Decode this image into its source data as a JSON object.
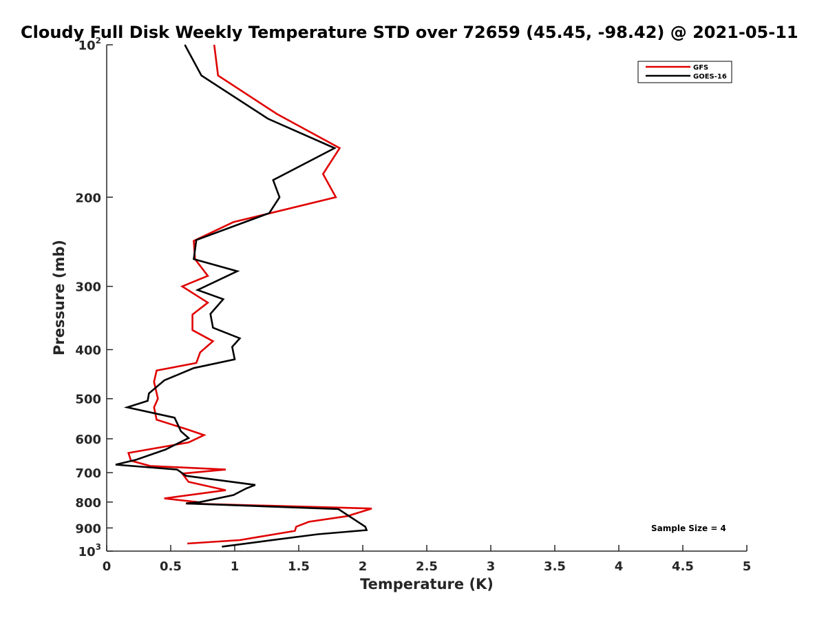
{
  "chart_data": {
    "type": "line",
    "title": "Cloudy Full Disk Weekly Temperature STD over 72659 (45.45, -98.42) @ 2021-05-11",
    "xlabel": "Temperature (K)",
    "ylabel": "Pressure (mb)",
    "xlim": [
      0,
      5
    ],
    "ylim": [
      100,
      1000
    ],
    "yscale": "log",
    "y_reversed": true,
    "grid": false,
    "legend_position": "top-right",
    "x_ticks": [
      "0",
      "0.5",
      "1",
      "1.5",
      "2",
      "2.5",
      "3",
      "3.5",
      "4",
      "4.5",
      "5"
    ],
    "y_ticks": [
      {
        "value": 100,
        "base": "10",
        "sup": "2"
      },
      {
        "value": 200,
        "base": "200",
        "sup": ""
      },
      {
        "value": 300,
        "base": "300",
        "sup": ""
      },
      {
        "value": 400,
        "base": "400",
        "sup": ""
      },
      {
        "value": 500,
        "base": "500",
        "sup": ""
      },
      {
        "value": 600,
        "base": "600",
        "sup": ""
      },
      {
        "value": 700,
        "base": "700",
        "sup": ""
      },
      {
        "value": 800,
        "base": "800",
        "sup": ""
      },
      {
        "value": 900,
        "base": "900",
        "sup": ""
      },
      {
        "value": 1000,
        "base": "10",
        "sup": "3"
      }
    ],
    "annotation": "Sample Size = 4",
    "series": [
      {
        "name": "GFS",
        "color": "#e00000",
        "points": [
          [
            0.84,
            100
          ],
          [
            0.87,
            115
          ],
          [
            1.33,
            137
          ],
          [
            1.82,
            160
          ],
          [
            1.69,
            180
          ],
          [
            1.79,
            200
          ],
          [
            0.99,
            224
          ],
          [
            0.68,
            244
          ],
          [
            0.69,
            265
          ],
          [
            0.79,
            286
          ],
          [
            0.59,
            300
          ],
          [
            0.79,
            323
          ],
          [
            0.67,
            341
          ],
          [
            0.67,
            366
          ],
          [
            0.83,
            385
          ],
          [
            0.73,
            405
          ],
          [
            0.7,
            425
          ],
          [
            0.39,
            440
          ],
          [
            0.37,
            463
          ],
          [
            0.4,
            500
          ],
          [
            0.37,
            520
          ],
          [
            0.39,
            550
          ],
          [
            0.63,
            575
          ],
          [
            0.76,
            590
          ],
          [
            0.64,
            610
          ],
          [
            0.17,
            640
          ],
          [
            0.19,
            663
          ],
          [
            0.34,
            679
          ],
          [
            0.93,
            690
          ],
          [
            0.59,
            703
          ],
          [
            0.64,
            730
          ],
          [
            0.93,
            758
          ],
          [
            0.45,
            787
          ],
          [
            0.71,
            800
          ],
          [
            0.62,
            805
          ],
          [
            2.07,
            824
          ],
          [
            1.88,
            853
          ],
          [
            1.58,
            875
          ],
          [
            1.48,
            895
          ],
          [
            1.47,
            912
          ],
          [
            1.04,
            951
          ],
          [
            0.63,
            966
          ]
        ]
      },
      {
        "name": "GOES-16",
        "color": "#000000",
        "points": [
          [
            0.61,
            100
          ],
          [
            0.74,
            115
          ],
          [
            1.26,
            140
          ],
          [
            1.78,
            160
          ],
          [
            1.3,
            185
          ],
          [
            1.35,
            200
          ],
          [
            1.27,
            215
          ],
          [
            0.7,
            243
          ],
          [
            0.68,
            265
          ],
          [
            1.02,
            280
          ],
          [
            0.71,
            305
          ],
          [
            0.91,
            318
          ],
          [
            0.81,
            340
          ],
          [
            0.83,
            362
          ],
          [
            1.04,
            380
          ],
          [
            0.98,
            395
          ],
          [
            1.0,
            418
          ],
          [
            0.68,
            435
          ],
          [
            0.45,
            460
          ],
          [
            0.33,
            488
          ],
          [
            0.32,
            505
          ],
          [
            0.16,
            520
          ],
          [
            0.53,
            545
          ],
          [
            0.58,
            580
          ],
          [
            0.64,
            598
          ],
          [
            0.46,
            630
          ],
          [
            0.23,
            660
          ],
          [
            0.07,
            675
          ],
          [
            0.55,
            690
          ],
          [
            0.62,
            710
          ],
          [
            1.16,
            740
          ],
          [
            1.09,
            752
          ],
          [
            0.99,
            775
          ],
          [
            0.73,
            800
          ],
          [
            0.62,
            805
          ],
          [
            1.81,
            826
          ],
          [
            1.9,
            855
          ],
          [
            2.02,
            895
          ],
          [
            2.03,
            909
          ],
          [
            1.65,
            926
          ],
          [
            1.28,
            952
          ],
          [
            0.9,
            980
          ]
        ]
      }
    ]
  }
}
